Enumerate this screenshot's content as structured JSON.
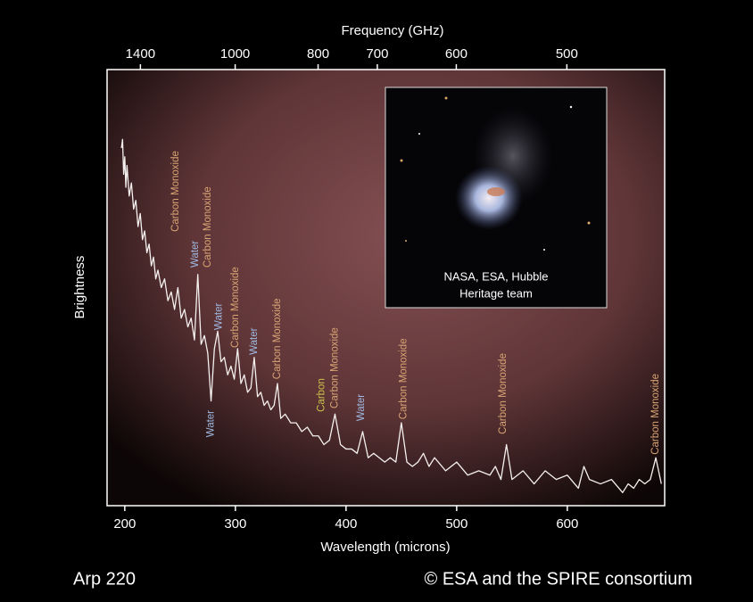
{
  "chart_data": {
    "type": "line",
    "x_label": "Wavelength (microns)",
    "x2_label": "Frequency (GHz)",
    "y_label": "Brightness",
    "color": "#f4f0ee",
    "xlim": [
      184,
      688
    ],
    "xticks": [
      200,
      300,
      400,
      500,
      600
    ],
    "x2ticks": [
      1400,
      1000,
      800,
      700,
      600,
      500
    ],
    "ylim": [
      0,
      100
    ],
    "x": [
      197,
      198,
      199,
      200,
      201,
      202,
      204,
      206,
      208,
      210,
      212,
      214,
      216,
      218,
      220,
      222,
      224,
      226,
      228,
      230,
      233,
      236,
      239,
      242,
      245,
      248,
      251,
      254,
      257,
      260,
      263,
      266,
      269,
      272,
      275,
      278,
      281,
      284,
      287,
      290,
      293,
      296,
      299,
      302,
      305,
      308,
      311,
      314,
      317,
      320,
      323,
      326,
      329,
      332,
      335,
      338,
      341,
      345,
      350,
      355,
      360,
      365,
      370,
      375,
      380,
      385,
      390,
      395,
      400,
      405,
      410,
      415,
      420,
      425,
      430,
      435,
      440,
      445,
      450,
      455,
      460,
      465,
      470,
      475,
      480,
      490,
      500,
      510,
      520,
      530,
      535,
      540,
      545,
      550,
      560,
      570,
      580,
      590,
      600,
      610,
      615,
      620,
      630,
      640,
      650,
      655,
      660,
      665,
      670,
      675,
      680,
      685
    ],
    "values": [
      82,
      84,
      76,
      80,
      73,
      78,
      71,
      74,
      68,
      70,
      64,
      67,
      61,
      63,
      58,
      60,
      55,
      57,
      52,
      54,
      50,
      52,
      47,
      49,
      45,
      50,
      43,
      45,
      41,
      43,
      38,
      53,
      37,
      39,
      35,
      24,
      36,
      40,
      33,
      34,
      30,
      32,
      29,
      36,
      28,
      30,
      26,
      27,
      34,
      25,
      26,
      23,
      24,
      22,
      23,
      28,
      20,
      21,
      19,
      19,
      17,
      18,
      16,
      16,
      14,
      15,
      21,
      14,
      13,
      13,
      12,
      17,
      11,
      12,
      11,
      10,
      11,
      10,
      19,
      10,
      9,
      10,
      12,
      9,
      11,
      8,
      10,
      7,
      8,
      7,
      9,
      6,
      14,
      6,
      8,
      5,
      8,
      6,
      7,
      4,
      9,
      6,
      5,
      6,
      3,
      5,
      4,
      6,
      5,
      6,
      11,
      5
    ],
    "annotations": [
      {
        "text": "Carbon Monoxide",
        "x": 246,
        "y": 62.8,
        "color": "#d8a574"
      },
      {
        "text": "Water",
        "x": 264,
        "y": 54.6,
        "color": "#9fbbe3"
      },
      {
        "text": "Carbon Monoxide",
        "x": 275,
        "y": 54.6,
        "color": "#d8a574"
      },
      {
        "text": "Water",
        "x": 278,
        "y": 15.7,
        "color": "#9fbbe3"
      },
      {
        "text": "Water",
        "x": 285,
        "y": 40.3,
        "color": "#9fbbe3"
      },
      {
        "text": "Carbon Monoxide",
        "x": 300,
        "y": 36.2,
        "color": "#d8a574"
      },
      {
        "text": "Water",
        "x": 317,
        "y": 34.6,
        "color": "#9fbbe3"
      },
      {
        "text": "Carbon Monoxide",
        "x": 338,
        "y": 29.0,
        "color": "#d8a574"
      },
      {
        "text": "Carbon",
        "x": 378,
        "y": 21.5,
        "color": "#c9c24a"
      },
      {
        "text": "Carbon Monoxide",
        "x": 390,
        "y": 22.3,
        "color": "#d8a574"
      },
      {
        "text": "Water",
        "x": 414,
        "y": 19.4,
        "color": "#9fbbe3"
      },
      {
        "text": "Carbon Monoxide",
        "x": 452,
        "y": 19.8,
        "color": "#d8a574"
      },
      {
        "text": "Carbon Monoxide",
        "x": 542,
        "y": 16.4,
        "color": "#d8a574"
      },
      {
        "text": "Carbon Monoxide",
        "x": 680,
        "y": 11.7,
        "color": "#d8a574"
      }
    ],
    "inset_caption": [
      "NASA, ESA, Hubble",
      "Heritage team"
    ],
    "object_name": "Arp 220",
    "credit": "© ESA and the SPIRE consortium"
  }
}
